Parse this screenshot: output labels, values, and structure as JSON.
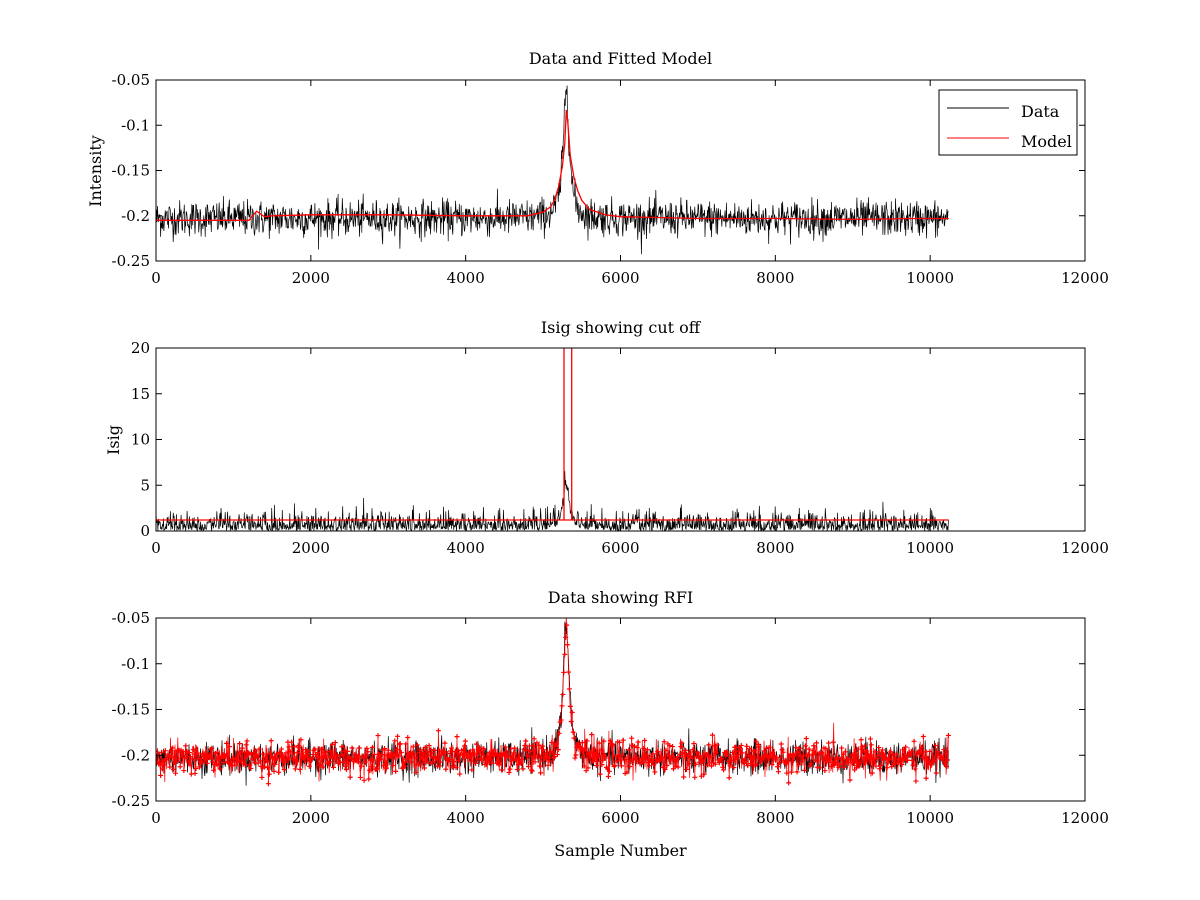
{
  "chart_data": [
    {
      "type": "line",
      "title": "Data and Fitted Model",
      "xlabel": "",
      "ylabel": "Intensity",
      "xlim": [
        0,
        12000
      ],
      "ylim": [
        -0.25,
        -0.05
      ],
      "y_reversed": true,
      "xticks": [
        0,
        2000,
        4000,
        6000,
        8000,
        10000,
        12000
      ],
      "yticks": [
        -0.05,
        -0.1,
        -0.15,
        -0.2,
        -0.25
      ],
      "legend_position": "top-right",
      "legend": [
        "Data",
        "Model"
      ],
      "series": [
        {
          "name": "Data",
          "color": "#000000",
          "x_range": [
            0,
            10240
          ],
          "baseline": -0.203,
          "noise_amplitude": 0.022,
          "peak_center": 5300,
          "peak_value": -0.055
        },
        {
          "name": "Model",
          "color": "#ff0000",
          "x": [
            0,
            1200,
            1300,
            1400,
            1500,
            2000,
            3000,
            4000,
            4800,
            5000,
            5100,
            5150,
            5200,
            5250,
            5280,
            5300,
            5320,
            5350,
            5400,
            5450,
            5500,
            5600,
            5800,
            6000,
            7000,
            8000,
            9000,
            9800,
            10240
          ],
          "y": [
            -0.205,
            -0.205,
            -0.195,
            -0.201,
            -0.2,
            -0.199,
            -0.199,
            -0.2,
            -0.2,
            -0.196,
            -0.19,
            -0.182,
            -0.168,
            -0.145,
            -0.12,
            -0.083,
            -0.098,
            -0.133,
            -0.158,
            -0.173,
            -0.183,
            -0.193,
            -0.199,
            -0.201,
            -0.203,
            -0.203,
            -0.204,
            -0.203,
            -0.203
          ]
        }
      ]
    },
    {
      "type": "line",
      "title": "Isig showing cut off",
      "xlabel": "",
      "ylabel": "Isig",
      "xlim": [
        0,
        12000
      ],
      "ylim": [
        0,
        20
      ],
      "xticks": [
        0,
        2000,
        4000,
        6000,
        8000,
        10000,
        12000
      ],
      "yticks": [
        0,
        5,
        10,
        15,
        20
      ],
      "series": [
        {
          "color": "#000000",
          "x_range": [
            0,
            10240
          ],
          "noise_amplitude": 3.0,
          "peak_center": 5300,
          "peak_value": 5.5
        },
        {
          "color": "#ff0000",
          "x": [
            0,
            5270,
            5270,
            5270,
            5370,
            5370,
            5370,
            10240
          ],
          "y": [
            1.2,
            1.2,
            20,
            1.2,
            1.2,
            20,
            1.2,
            1.2
          ]
        }
      ]
    },
    {
      "type": "scatter",
      "title": "Data showing RFI",
      "xlabel": "Sample Number",
      "ylabel": "",
      "xlim": [
        0,
        12000
      ],
      "ylim": [
        -0.25,
        -0.05
      ],
      "y_reversed": true,
      "xticks": [
        0,
        2000,
        4000,
        6000,
        8000,
        10000,
        12000
      ],
      "yticks": [
        -0.05,
        -0.1,
        -0.15,
        -0.2,
        -0.25
      ],
      "series": [
        {
          "color": "#000000",
          "x_range": [
            0,
            10240
          ],
          "baseline": -0.203,
          "noise_amplitude": 0.02,
          "peak_center": 5300,
          "peak_value": -0.055
        },
        {
          "color": "#ff0000",
          "marker": "+",
          "x_range": [
            0,
            10240
          ],
          "baseline": -0.203,
          "noise_amplitude": 0.02,
          "peak_center": 5300,
          "peak_value": -0.055
        }
      ]
    }
  ]
}
